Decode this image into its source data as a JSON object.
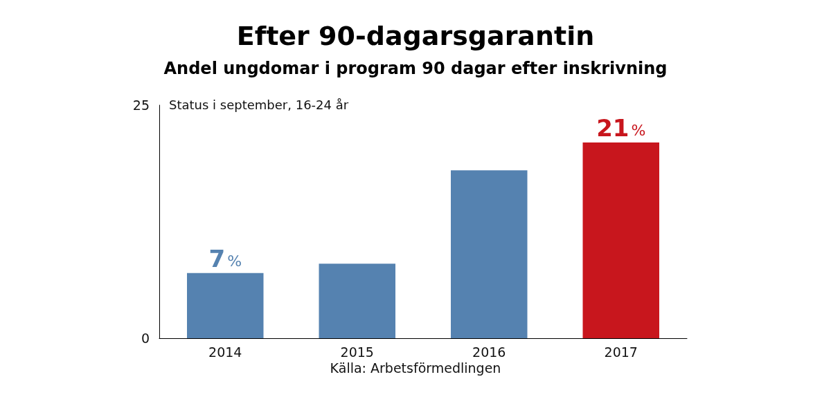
{
  "chart_data": {
    "type": "bar",
    "title": "Efter 90-dagarsgarantin",
    "subtitle": "Andel ungdomar i program 90 dagar efter inskrivning",
    "categories": [
      "2014",
      "2015",
      "2016",
      "2017"
    ],
    "values": [
      7,
      8,
      18,
      21
    ],
    "colors": [
      "#5582b0",
      "#5582b0",
      "#5582b0",
      "#c8161d"
    ],
    "value_labels": [
      "7%",
      null,
      null,
      "21%"
    ],
    "ylim": [
      0,
      25
    ],
    "yticks": [
      0,
      25
    ],
    "grid": false,
    "annotations": [
      "Status i september, 16-24 år",
      "Källa: Arbetsförmedlingen"
    ]
  }
}
